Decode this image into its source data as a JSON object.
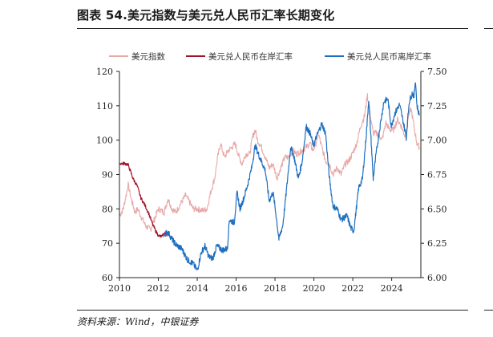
{
  "figure": {
    "title": "图表 54.美元指数与美元兑人民币汇率长期变化",
    "source": "资料来源：Wind，中银证券"
  },
  "chart_data": {
    "type": "line",
    "title": "图表 54.美元指数与美元兑人民币汇率长期变化",
    "xlabel": "",
    "ylabel_left": "",
    "ylabel_right": "",
    "xlim": [
      2010,
      2025.5
    ],
    "x_ticks": [
      "2010",
      "2012",
      "2014",
      "2016",
      "2018",
      "2020",
      "2022",
      "2024"
    ],
    "ylim_left": [
      60,
      120
    ],
    "y_ticks_left": [
      "60",
      "70",
      "80",
      "90",
      "100",
      "110",
      "120"
    ],
    "ylim_right": [
      6.0,
      7.5
    ],
    "y_ticks_right": [
      "6.00",
      "6.25",
      "6.50",
      "6.75",
      "7.00",
      "7.25",
      "7.50"
    ],
    "legend_position": "top",
    "series": [
      {
        "name": "美元指数",
        "axis": "left",
        "color": "#e8a8a8",
        "points": [
          [
            2010.0,
            78
          ],
          [
            2010.2,
            80
          ],
          [
            2010.45,
            87
          ],
          [
            2010.6,
            83
          ],
          [
            2010.8,
            79
          ],
          [
            2010.95,
            80
          ],
          [
            2011.1,
            78
          ],
          [
            2011.35,
            75
          ],
          [
            2011.6,
            74
          ],
          [
            2011.8,
            77
          ],
          [
            2012.0,
            80
          ],
          [
            2012.3,
            79
          ],
          [
            2012.5,
            83
          ],
          [
            2012.7,
            80
          ],
          [
            2012.9,
            79
          ],
          [
            2013.1,
            81
          ],
          [
            2013.4,
            84
          ],
          [
            2013.6,
            82
          ],
          [
            2013.8,
            80
          ],
          [
            2014.0,
            80
          ],
          [
            2014.3,
            79.5
          ],
          [
            2014.5,
            80
          ],
          [
            2014.7,
            85
          ],
          [
            2014.9,
            89
          ],
          [
            2015.05,
            95
          ],
          [
            2015.2,
            99
          ],
          [
            2015.4,
            95
          ],
          [
            2015.6,
            97
          ],
          [
            2015.8,
            98
          ],
          [
            2015.95,
            99
          ],
          [
            2016.1,
            96
          ],
          [
            2016.3,
            93
          ],
          [
            2016.5,
            96
          ],
          [
            2016.7,
            96
          ],
          [
            2016.85,
            101
          ],
          [
            2016.98,
            103
          ],
          [
            2017.1,
            100
          ],
          [
            2017.3,
            98
          ],
          [
            2017.5,
            95
          ],
          [
            2017.7,
            92
          ],
          [
            2017.9,
            93
          ],
          [
            2018.1,
            89
          ],
          [
            2018.3,
            92
          ],
          [
            2018.5,
            95
          ],
          [
            2018.7,
            95
          ],
          [
            2018.9,
            97
          ],
          [
            2019.1,
            96
          ],
          [
            2019.4,
            97
          ],
          [
            2019.6,
            98
          ],
          [
            2019.8,
            99
          ],
          [
            2019.95,
            97
          ],
          [
            2020.1,
            99
          ],
          [
            2020.22,
            102
          ],
          [
            2020.4,
            98
          ],
          [
            2020.6,
            94
          ],
          [
            2020.8,
            93
          ],
          [
            2020.98,
            90
          ],
          [
            2021.2,
            92
          ],
          [
            2021.4,
            90
          ],
          [
            2021.6,
            93
          ],
          [
            2021.8,
            94
          ],
          [
            2021.98,
            96
          ],
          [
            2022.2,
            99
          ],
          [
            2022.4,
            104
          ],
          [
            2022.6,
            107
          ],
          [
            2022.75,
            113
          ],
          [
            2022.9,
            107
          ],
          [
            2023.05,
            102
          ],
          [
            2023.3,
            102
          ],
          [
            2023.5,
            100
          ],
          [
            2023.7,
            105
          ],
          [
            2023.9,
            103
          ],
          [
            2024.1,
            103
          ],
          [
            2024.3,
            106
          ],
          [
            2024.5,
            104
          ],
          [
            2024.7,
            101
          ],
          [
            2024.85,
            107
          ],
          [
            2025.0,
            109
          ],
          [
            2025.15,
            104
          ],
          [
            2025.3,
            99
          ],
          [
            2025.42,
            98
          ]
        ]
      },
      {
        "name": "美元兑人民币在岸汇率",
        "axis": "right",
        "color": "#a3122a",
        "points": [
          [
            2010.0,
            6.83
          ],
          [
            2010.3,
            6.83
          ],
          [
            2010.45,
            6.82
          ],
          [
            2010.55,
            6.78
          ],
          [
            2010.7,
            6.72
          ],
          [
            2010.9,
            6.67
          ],
          [
            2011.1,
            6.58
          ],
          [
            2011.3,
            6.53
          ],
          [
            2011.5,
            6.47
          ],
          [
            2011.7,
            6.39
          ],
          [
            2011.9,
            6.33
          ],
          [
            2012.05,
            6.3
          ],
          [
            2012.2,
            6.3
          ],
          [
            2012.35,
            6.33
          ],
          [
            2012.45,
            6.3
          ]
        ]
      },
      {
        "name": "美元兑人民币离岸汇率",
        "axis": "right",
        "color": "#1f6fc0",
        "points": [
          [
            2012.3,
            6.32
          ],
          [
            2012.5,
            6.33
          ],
          [
            2012.7,
            6.28
          ],
          [
            2012.9,
            6.24
          ],
          [
            2013.2,
            6.21
          ],
          [
            2013.5,
            6.13
          ],
          [
            2013.8,
            6.1
          ],
          [
            2014.0,
            6.05
          ],
          [
            2014.2,
            6.18
          ],
          [
            2014.4,
            6.23
          ],
          [
            2014.6,
            6.15
          ],
          [
            2014.8,
            6.14
          ],
          [
            2015.0,
            6.23
          ],
          [
            2015.3,
            6.2
          ],
          [
            2015.55,
            6.21
          ],
          [
            2015.65,
            6.42
          ],
          [
            2015.9,
            6.4
          ],
          [
            2016.05,
            6.62
          ],
          [
            2016.2,
            6.5
          ],
          [
            2016.4,
            6.58
          ],
          [
            2016.6,
            6.68
          ],
          [
            2016.8,
            6.8
          ],
          [
            2016.98,
            6.96
          ],
          [
            2017.2,
            6.88
          ],
          [
            2017.5,
            6.78
          ],
          [
            2017.7,
            6.56
          ],
          [
            2017.9,
            6.62
          ],
          [
            2018.05,
            6.46
          ],
          [
            2018.2,
            6.28
          ],
          [
            2018.4,
            6.38
          ],
          [
            2018.6,
            6.65
          ],
          [
            2018.8,
            6.95
          ],
          [
            2018.98,
            6.88
          ],
          [
            2019.2,
            6.72
          ],
          [
            2019.4,
            6.85
          ],
          [
            2019.6,
            7.1
          ],
          [
            2019.8,
            7.05
          ],
          [
            2019.98,
            6.96
          ],
          [
            2020.15,
            7.03
          ],
          [
            2020.4,
            7.12
          ],
          [
            2020.6,
            7.05
          ],
          [
            2020.8,
            6.72
          ],
          [
            2020.98,
            6.52
          ],
          [
            2021.2,
            6.5
          ],
          [
            2021.4,
            6.42
          ],
          [
            2021.7,
            6.45
          ],
          [
            2021.9,
            6.36
          ],
          [
            2022.05,
            6.34
          ],
          [
            2022.3,
            6.65
          ],
          [
            2022.5,
            6.72
          ],
          [
            2022.7,
            7.05
          ],
          [
            2022.82,
            7.3
          ],
          [
            2022.95,
            6.98
          ],
          [
            2023.05,
            6.72
          ],
          [
            2023.2,
            6.9
          ],
          [
            2023.4,
            7.1
          ],
          [
            2023.6,
            7.28
          ],
          [
            2023.8,
            7.3
          ],
          [
            2023.98,
            7.1
          ],
          [
            2024.15,
            7.19
          ],
          [
            2024.4,
            7.26
          ],
          [
            2024.6,
            7.13
          ],
          [
            2024.75,
            7.02
          ],
          [
            2024.9,
            7.28
          ],
          [
            2025.05,
            7.34
          ],
          [
            2025.15,
            7.32
          ],
          [
            2025.22,
            7.44
          ],
          [
            2025.3,
            7.25
          ],
          [
            2025.42,
            7.18
          ]
        ]
      }
    ]
  }
}
